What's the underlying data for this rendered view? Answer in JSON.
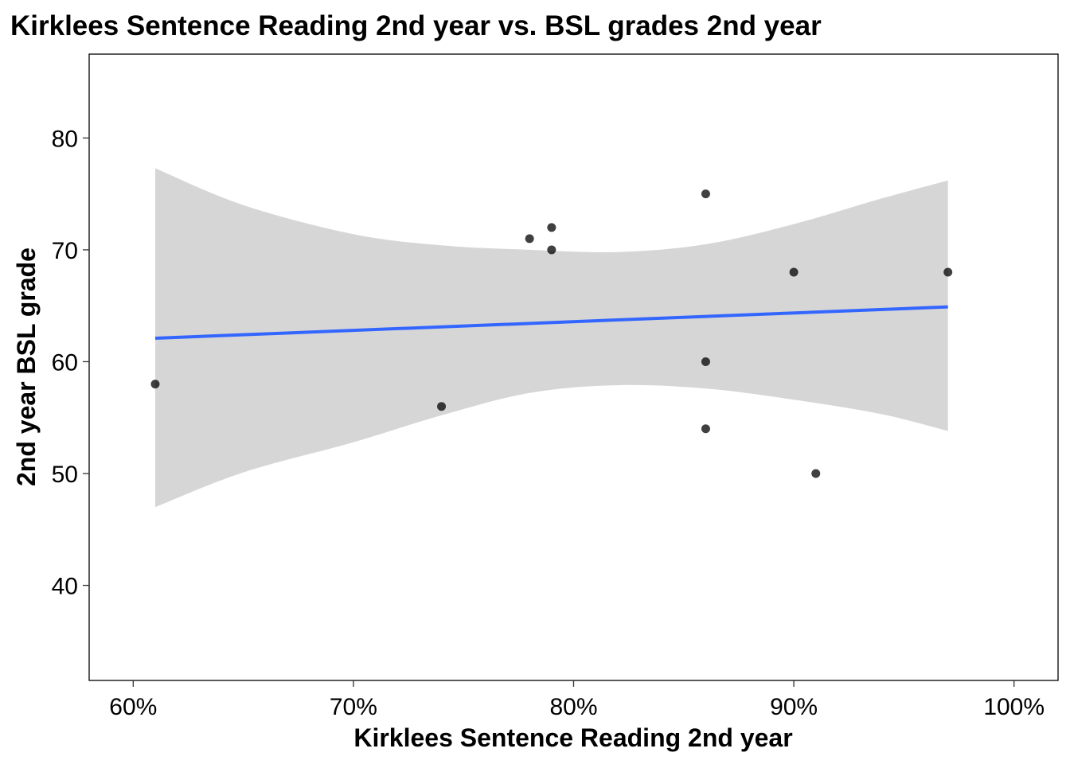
{
  "chart_data": {
    "type": "scatter",
    "title": "Kirklees Sentence Reading 2nd year vs. BSL grades 2nd year",
    "xlabel": "Kirklees Sentence Reading 2nd year",
    "ylabel": "2nd year BSL grade",
    "xlim": [
      0.58,
      1.02
    ],
    "ylim": [
      31.5,
      87.5
    ],
    "x_ticks": [
      0.6,
      0.7,
      0.8,
      0.9,
      1.0
    ],
    "x_tick_labels": [
      "60%",
      "70%",
      "80%",
      "90%",
      "100%"
    ],
    "y_ticks": [
      40,
      50,
      60,
      70,
      80
    ],
    "y_tick_labels": [
      "40",
      "50",
      "60",
      "70",
      "80"
    ],
    "grid": false,
    "points": [
      {
        "x": 0.61,
        "y": 58
      },
      {
        "x": 0.74,
        "y": 56
      },
      {
        "x": 0.78,
        "y": 71
      },
      {
        "x": 0.79,
        "y": 72
      },
      {
        "x": 0.79,
        "y": 70
      },
      {
        "x": 0.86,
        "y": 75
      },
      {
        "x": 0.86,
        "y": 60
      },
      {
        "x": 0.86,
        "y": 54
      },
      {
        "x": 0.9,
        "y": 68
      },
      {
        "x": 0.91,
        "y": 50
      },
      {
        "x": 0.97,
        "y": 68
      }
    ],
    "fit_line": {
      "method": "linear",
      "x": [
        0.61,
        0.97
      ],
      "y": [
        62.1,
        64.9
      ]
    },
    "confidence_band": {
      "x": [
        0.61,
        0.65,
        0.7,
        0.74,
        0.78,
        0.82,
        0.86,
        0.9,
        0.94,
        0.97
      ],
      "upper": [
        77.3,
        74.0,
        71.4,
        70.4,
        70.0,
        69.8,
        70.5,
        72.3,
        74.6,
        76.2
      ],
      "lower": [
        47.0,
        50.1,
        52.8,
        55.2,
        57.2,
        57.9,
        57.6,
        56.6,
        55.3,
        53.8
      ]
    },
    "colors": {
      "points": "#000000",
      "fit_line": "#3366FF",
      "band": "#D6D6D6"
    }
  }
}
